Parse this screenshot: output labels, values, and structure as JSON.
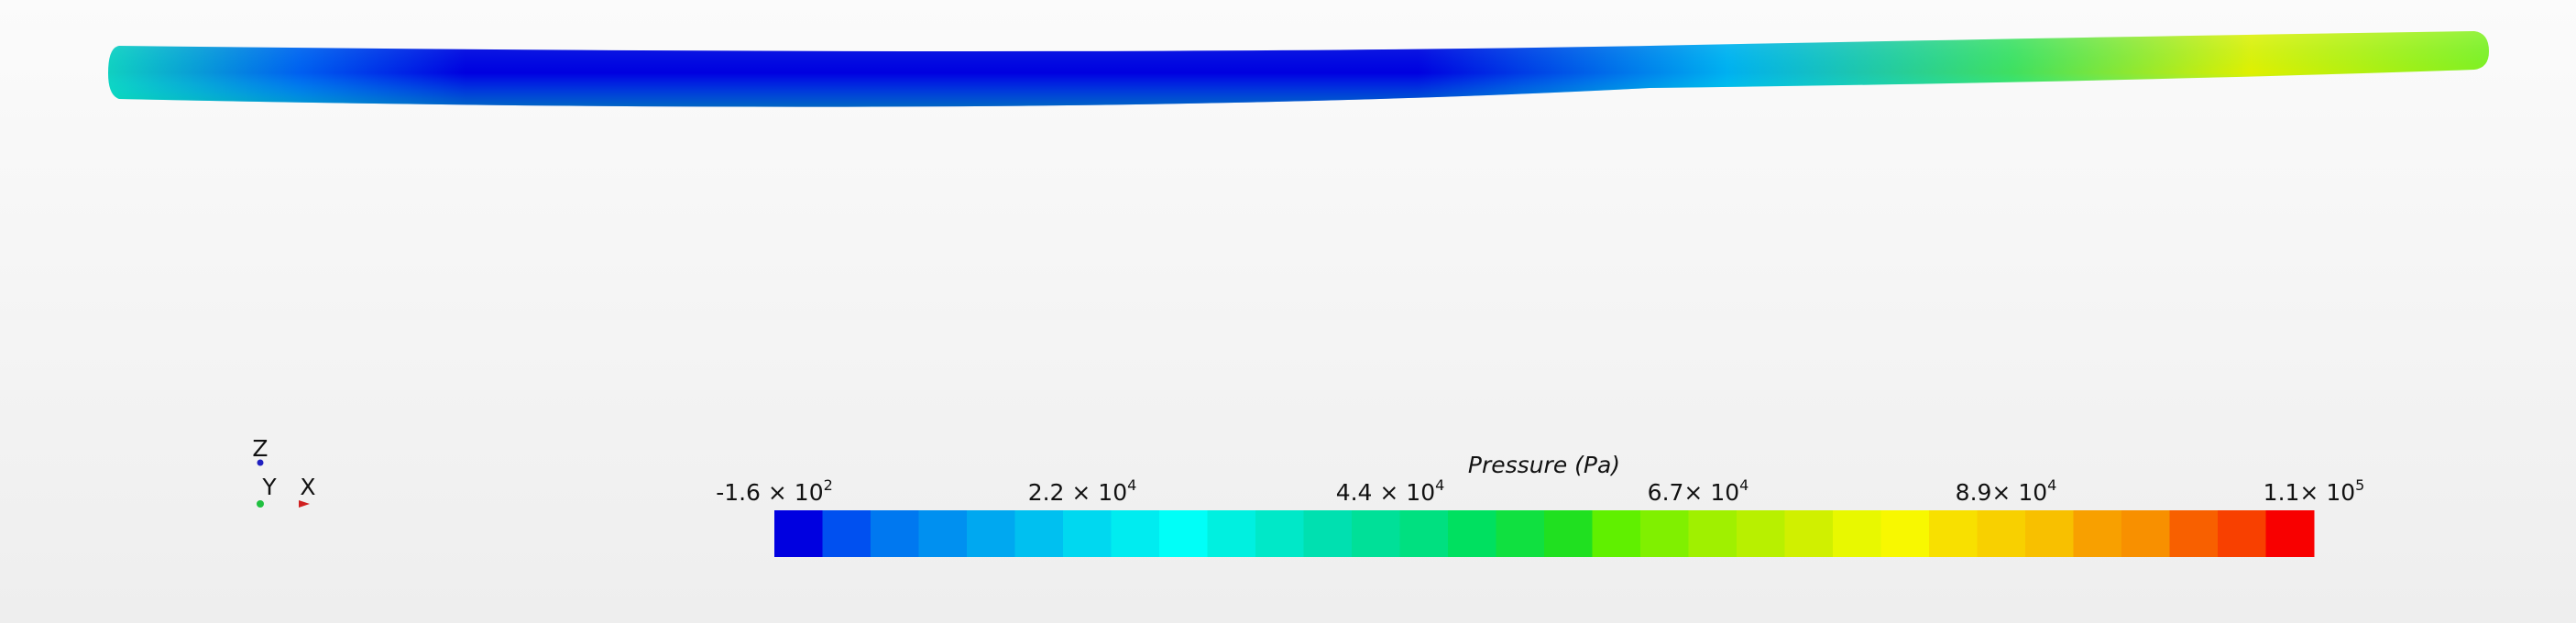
{
  "legend": {
    "title": "Pressure (Pa)",
    "ticks": [
      {
        "base": "-1.6 × 10",
        "exponent": "2"
      },
      {
        "base": "2.2 × 10",
        "exponent": "4"
      },
      {
        "base": "4.4 × 10",
        "exponent": "4"
      },
      {
        "base": "6.7× 10",
        "exponent": "4"
      },
      {
        "base": "8.9× 10",
        "exponent": "4"
      },
      {
        "base": "1.1× 10",
        "exponent": "5"
      }
    ],
    "colors": [
      "#0000e0",
      "#0050f0",
      "#0078f0",
      "#0090f0",
      "#00a8f0",
      "#00c0f0",
      "#00d8f0",
      "#00ecf0",
      "#00fff8",
      "#00f0e0",
      "#00e8c8",
      "#00e0b0",
      "#00e098",
      "#00e080",
      "#00e060",
      "#10e040",
      "#20e020",
      "#60f000",
      "#80f000",
      "#a0f000",
      "#b8f000",
      "#d0f000",
      "#e8f800",
      "#f8f800",
      "#f8e000",
      "#f8d000",
      "#f8c000",
      "#f8a000",
      "#f89000",
      "#f86000",
      "#f84000",
      "#f80000"
    ]
  },
  "axes": {
    "z": "Z",
    "y": "Y",
    "x": "X"
  }
}
